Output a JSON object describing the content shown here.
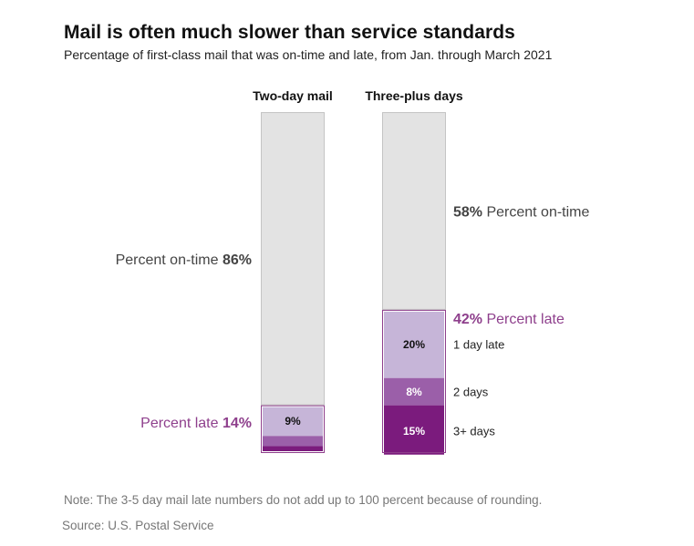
{
  "title": "Mail is often much slower than service standards",
  "subtitle": "Percentage of first-class mail that was on-time and late, from Jan. through March 2021",
  "note": "Note: The 3-5 day mail late numbers do not add up to 100 percent because of rounding.",
  "source": "Source: U.S. Postal Service",
  "colors": {
    "on_time": "#e3e3e3",
    "on_time_border": "#c4c4c4",
    "late_label": "#8e3f8c",
    "late_border": "#8e3f8c",
    "one_day": "#c6b5d8",
    "two_days": "#9b5fa9",
    "three_plus": "#7b1b7d",
    "dark_text": "#222222"
  },
  "chart_data": {
    "type": "bar",
    "stacked": true,
    "ylim": [
      0,
      100
    ],
    "categories": [
      "Two-day mail",
      "Three-plus days"
    ],
    "series": [
      {
        "name": "Percent on-time",
        "values": [
          86,
          58
        ]
      },
      {
        "name": "1 day late",
        "values": [
          9,
          20
        ]
      },
      {
        "name": "2 days",
        "values": [
          3,
          8
        ]
      },
      {
        "name": "3+ days",
        "values": [
          2,
          15
        ]
      }
    ],
    "totals_labels": {
      "on_time_word": "Percent on-time",
      "late_word": "Percent late",
      "on_time_values": [
        "86%",
        "58%"
      ],
      "late_values": [
        "14%",
        "42%"
      ]
    },
    "segment_labels": {
      "two_day": [
        "9%"
      ],
      "three_plus": [
        "20%",
        "8%",
        "15%"
      ]
    },
    "late_breakdown_labels": [
      "1 day late",
      "2 days",
      "3+ days"
    ]
  }
}
